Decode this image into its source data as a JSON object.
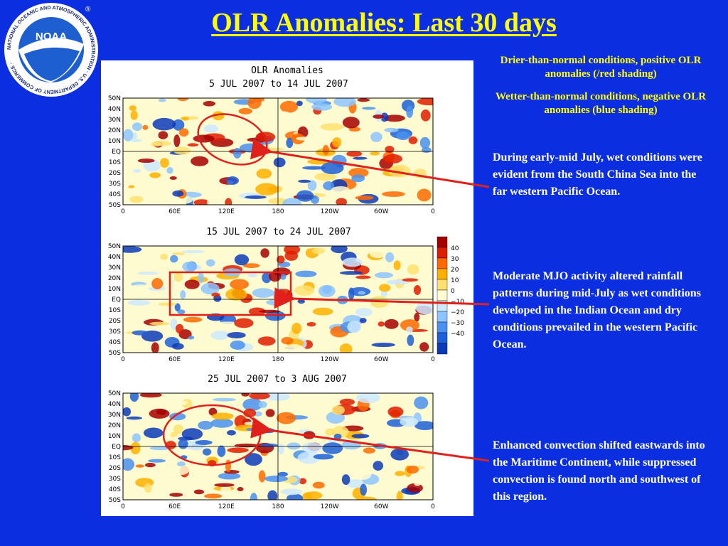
{
  "logo": {
    "center_text": "NOAA",
    "ring_text": "NATIONAL OCEANIC AND ATMOSPHERIC ADMINISTRATION · U.S. DEPARTMENT OF COMMERCE ·",
    "registered": "®"
  },
  "title": "OLR Anomalies: Last 30 days",
  "notes": {
    "drier": "Drier-than-normal conditions, positive OLR anomalies (/red shading)",
    "wetter": "Wetter-than-normal conditions, negative OLR anomalies (blue shading)"
  },
  "figure": {
    "heading": "OLR Anomalies",
    "panels": [
      {
        "period": "5 JUL 2007 to 14 JUL 2007"
      },
      {
        "period": "15 JUL 2007 to 24 JUL 2007"
      },
      {
        "period": "25 JUL 2007 to 3 AUG 2007"
      }
    ],
    "lat_labels": [
      "50N",
      "40N",
      "30N",
      "20N",
      "10N",
      "EQ",
      "10S",
      "20S",
      "30S",
      "40S",
      "50S"
    ],
    "lon_labels": [
      "0",
      "60E",
      "120E",
      "180",
      "120W",
      "60W",
      "0"
    ],
    "colorbar": {
      "labels": [
        "40",
        "30",
        "20",
        "10",
        "0",
        "−10",
        "−20",
        "−30",
        "−40"
      ],
      "colors": [
        "#a50000",
        "#e01c00",
        "#ff6a00",
        "#ffb000",
        "#ffe070",
        "#fffbd0",
        "#cde8ff",
        "#8cc4ff",
        "#4a90ee",
        "#1d5fd8",
        "#0a3ab8"
      ]
    }
  },
  "captions": {
    "c1": "During early-mid July, wet conditions were evident from the South China Sea into the far western Pacific Ocean.",
    "c2": "Moderate MJO activity altered rainfall patterns during mid-July as wet conditions developed in the Indian Ocean and dry conditions prevailed in the western Pacific Ocean.",
    "c3": "Enhanced convection shifted eastwards into the Maritime Continent, while suppressed convection is found north and southwest of this region."
  },
  "colors": {
    "background": "#0b2fe0",
    "title": "#ffff00",
    "caption": "#ffffff",
    "highlight": "#e0201a"
  }
}
